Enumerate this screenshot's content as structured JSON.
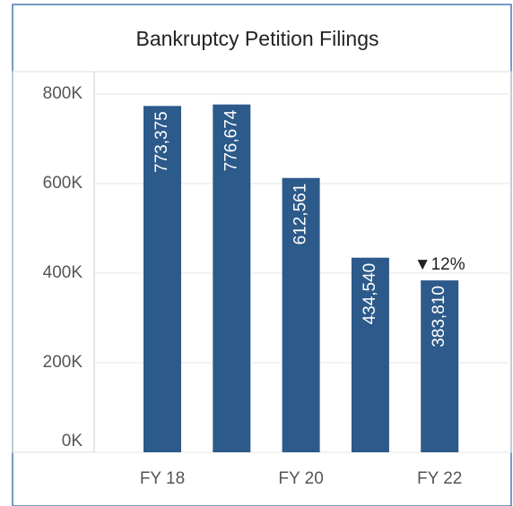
{
  "chart_data": {
    "type": "bar",
    "title": "Bankruptcy Petition Filings",
    "categories": [
      "FY 18",
      null,
      "FY 20",
      null,
      "FY 22"
    ],
    "values": [
      773375,
      776674,
      612561,
      434540,
      383810
    ],
    "value_labels": [
      "773,375",
      "776,674",
      "612,561",
      "434,540",
      "383,810"
    ],
    "annotation": "▼12%",
    "color": "#2c5a8a",
    "ylim": [
      0,
      850000
    ],
    "yticks": [
      {
        "value": 0,
        "label": "0K"
      },
      {
        "value": 200000,
        "label": "200K"
      },
      {
        "value": 400000,
        "label": "400K"
      },
      {
        "value": 600000,
        "label": "600K"
      },
      {
        "value": 800000,
        "label": "800K"
      }
    ],
    "grid": true
  }
}
